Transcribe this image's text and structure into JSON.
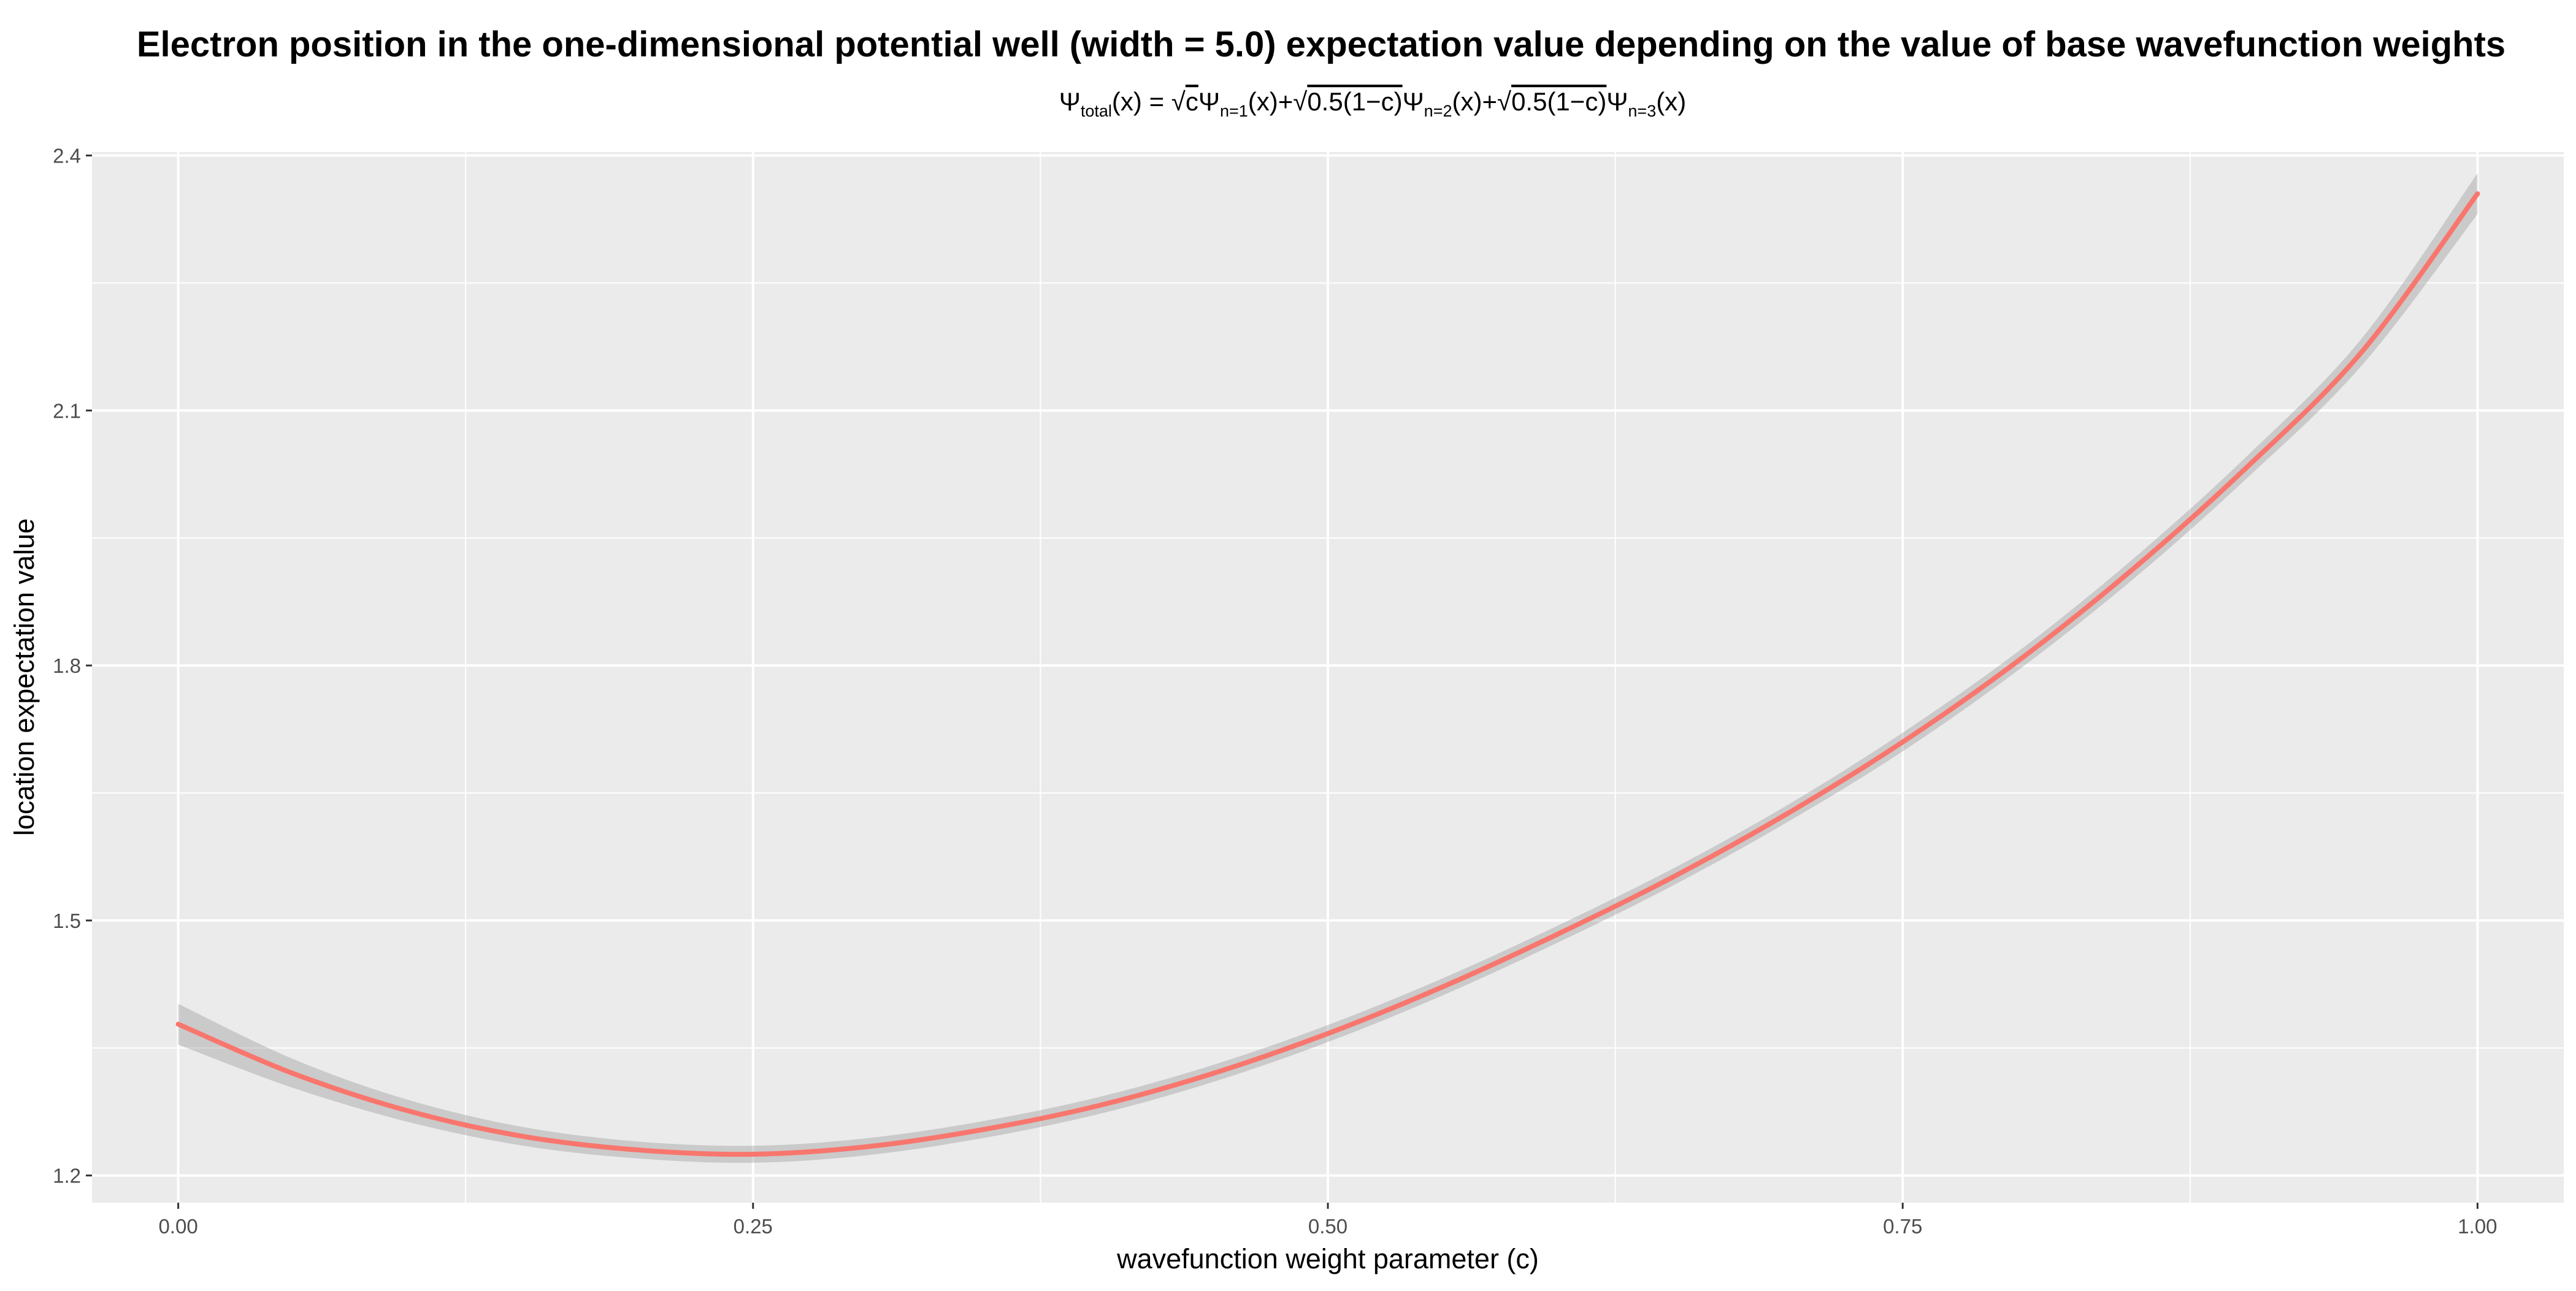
{
  "chart_data": {
    "type": "line",
    "title": "Electron position in the one-dimensional potential well (width = 5.0) expectation value depending on the value of base wavefunction weights",
    "subtitle": "Ψtotal(x) = √cΨn=1(x)+√0.5(1−c)Ψn=2(x)+√0.5(1−c)Ψn=3(x)",
    "subtitle_parts": {
      "psi": "Ψ",
      "total": "total",
      "x": "(x)",
      "eq": " = ",
      "sqrt": "√",
      "c": "c",
      "n1": "n=1",
      "n2": "n=2",
      "n3": "n=3",
      "plus": "+",
      "half": "0.5(1−c)"
    },
    "xlabel": "wavefunction weight parameter (c)",
    "ylabel": "location expectation value",
    "xlim": [
      -0.0375,
      1.0375
    ],
    "ylim": [
      1.168,
      2.404
    ],
    "x_ticks": [
      0.0,
      0.25,
      0.5,
      0.75,
      1.0
    ],
    "x_tick_labels": [
      "0.00",
      "0.25",
      "0.50",
      "0.75",
      "1.00"
    ],
    "y_ticks": [
      1.2,
      1.5,
      1.8,
      2.1,
      2.4
    ],
    "y_tick_labels": [
      "1.2",
      "1.5",
      "1.8",
      "2.1",
      "2.4"
    ],
    "grid": true,
    "series": [
      {
        "x": [
          0.0,
          0.05,
          0.1,
          0.15,
          0.2,
          0.25,
          0.3,
          0.35,
          0.4,
          0.45,
          0.5,
          0.55,
          0.6,
          0.65,
          0.7,
          0.75,
          0.8,
          0.85,
          0.9,
          0.95,
          1.0
        ],
        "y": [
          1.378,
          1.32,
          1.276,
          1.246,
          1.23,
          1.225,
          1.234,
          1.254,
          1.282,
          1.32,
          1.367,
          1.422,
          1.484,
          1.551,
          1.626,
          1.71,
          1.805,
          1.913,
          2.034,
          2.17,
          2.355
        ],
        "band_halfwidth": [
          0.024,
          0.017,
          0.013,
          0.011,
          0.01,
          0.01,
          0.01,
          0.01,
          0.01,
          0.01,
          0.01,
          0.01,
          0.01,
          0.01,
          0.01,
          0.011,
          0.011,
          0.012,
          0.013,
          0.016,
          0.024
        ]
      }
    ],
    "colors": {
      "line": "#f8766d",
      "band": "#999999",
      "panel": "#ebebeb",
      "grid": "#ffffff",
      "tick_label": "#4d4d4d",
      "tick_mark": "#333333"
    }
  }
}
